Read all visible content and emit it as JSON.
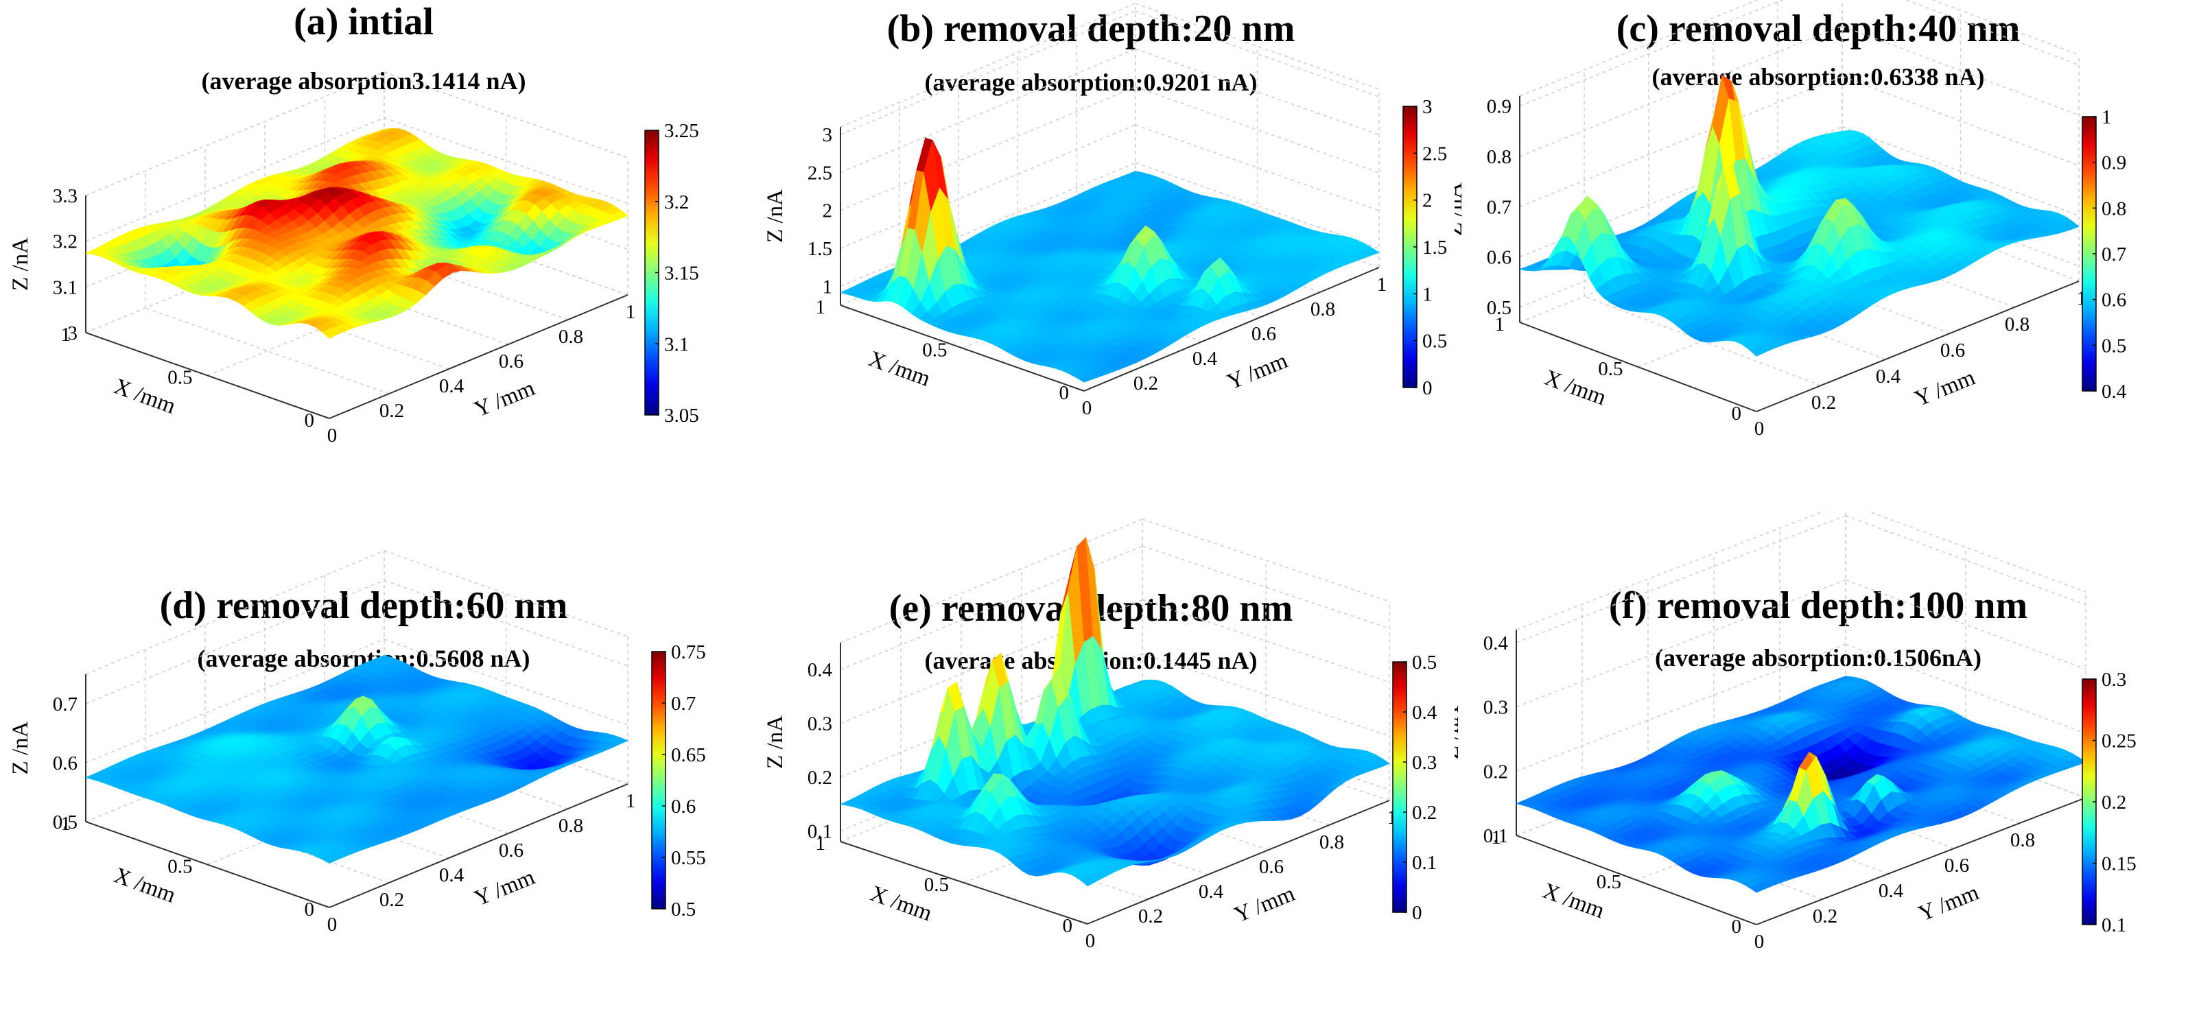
{
  "figure": {
    "colormap": "jet"
  },
  "chart_data": [
    {
      "type": "surface",
      "id": "a",
      "title": "(a) intial",
      "subtitle": "(average absorption3.1414 nA)",
      "xlabel": "X /mm",
      "ylabel": "Y /mm",
      "zlabel": "Z /nA",
      "x_ticks": [
        "0",
        "0.5",
        "1"
      ],
      "y_ticks": [
        "0",
        "0.2",
        "0.4",
        "0.6",
        "0.8",
        "1"
      ],
      "z_ticks": [
        "3",
        "3.1",
        "3.2",
        "3.3"
      ],
      "zlim": [
        3.0,
        3.3
      ],
      "colorbar": {
        "ticks": [
          "3.05",
          "3.1",
          "3.15",
          "3.2",
          "3.25"
        ],
        "range": [
          3.05,
          3.25
        ]
      },
      "surface": {
        "base": 3.175,
        "noise": 0.045,
        "peaks": [
          [
            0.55,
            0.55,
            0.06,
            0.09
          ],
          [
            0.3,
            0.4,
            0.05,
            0.09
          ],
          [
            0.7,
            0.3,
            0.05,
            0.08
          ]
        ],
        "dips": [
          [
            0.8,
            0.2,
            0.08,
            0.08
          ],
          [
            0.4,
            0.8,
            0.07,
            0.09
          ]
        ],
        "seed": 11
      }
    },
    {
      "type": "surface",
      "id": "b",
      "title": "(b) removal depth:20 nm",
      "subtitle": "(average absorption:0.9201 nA)",
      "xlabel": "X /mm",
      "ylabel": "Y /mm",
      "zlabel": "Z /nA",
      "x_ticks": [
        "0",
        "0.5",
        "1"
      ],
      "y_ticks": [
        "0",
        "0.2",
        "0.4",
        "0.6",
        "0.8",
        "1"
      ],
      "z_ticks": [
        "1",
        "1.5",
        "2",
        "2.5",
        "3"
      ],
      "zlim": [
        0.75,
        3.1
      ],
      "colorbar": {
        "ticks": [
          "0",
          "0.5",
          "1",
          "1.5",
          "2",
          "2.5",
          "3"
        ],
        "range": [
          0,
          3
        ]
      },
      "surface": {
        "base": 0.92,
        "noise": 0.12,
        "peaks": [
          [
            0.78,
            0.12,
            2.15,
            0.05
          ],
          [
            0.35,
            0.5,
            0.75,
            0.05
          ],
          [
            0.12,
            0.55,
            0.55,
            0.04
          ]
        ],
        "dips": [],
        "seed": 23
      }
    },
    {
      "type": "surface",
      "id": "c",
      "title": "(c) removal depth:40 nm",
      "subtitle": "(average absorption:0.6338 nA)",
      "xlabel": "X /mm",
      "ylabel": "Y /mm",
      "zlabel": "Z /nA",
      "x_ticks": [
        "0",
        "0.5",
        "1"
      ],
      "y_ticks": [
        "0",
        "0.2",
        "0.4",
        "0.6",
        "0.8",
        "1"
      ],
      "z_ticks": [
        "0.5",
        "0.6",
        "0.7",
        "0.8",
        "0.9"
      ],
      "zlim": [
        0.47,
        0.92
      ],
      "colorbar": {
        "ticks": [
          "0.4",
          "0.5",
          "0.6",
          "0.7",
          "0.8",
          "0.9",
          "1"
        ],
        "range": [
          0.4,
          1.0
        ]
      },
      "surface": {
        "base": 0.58,
        "noise": 0.04,
        "peaks": [
          [
            0.8,
            0.06,
            0.18,
            0.06
          ],
          [
            0.5,
            0.28,
            0.22,
            0.04
          ],
          [
            0.7,
            0.42,
            0.3,
            0.045
          ],
          [
            0.25,
            0.45,
            0.15,
            0.06
          ]
        ],
        "dips": [],
        "seed": 37
      }
    },
    {
      "type": "surface",
      "id": "d",
      "title": "(d) removal depth:60 nm",
      "subtitle": "(average absorption:0.5608 nA)",
      "xlabel": "X /mm",
      "ylabel": "Y /mm",
      "zlabel": "Z /nA",
      "x_ticks": [
        "0",
        "0.5",
        "1"
      ],
      "y_ticks": [
        "0",
        "0.2",
        "0.4",
        "0.6",
        "0.8",
        "1"
      ],
      "z_ticks": [
        "0.5",
        "0.6",
        "0.7"
      ],
      "zlim": [
        0.5,
        0.75
      ],
      "colorbar": {
        "ticks": [
          "0.5",
          "0.55",
          "0.6",
          "0.65",
          "0.7",
          "0.75"
        ],
        "range": [
          0.5,
          0.75
        ]
      },
      "surface": {
        "base": 0.575,
        "noise": 0.012,
        "peaks": [
          [
            0.62,
            0.62,
            0.08,
            0.05
          ],
          [
            0.45,
            0.58,
            0.03,
            0.04
          ]
        ],
        "dips": [
          [
            0.2,
            0.85,
            0.035,
            0.09
          ]
        ],
        "seed": 41
      }
    },
    {
      "type": "surface",
      "id": "e",
      "title": "(e) removal depth:80 nm",
      "subtitle": "(average absorption:0.1445 nA)",
      "xlabel": "X /mm",
      "ylabel": "Y /mm",
      "zlabel": "Z /nA",
      "x_ticks": [
        "0",
        "0.5",
        "1"
      ],
      "y_ticks": [
        "0",
        "0.2",
        "0.4",
        "0.6",
        "0.8",
        "1"
      ],
      "z_ticks": [
        "0.1",
        "0.2",
        "0.3",
        "0.4"
      ],
      "zlim": [
        0.08,
        0.45
      ],
      "colorbar": {
        "ticks": [
          "0",
          "0.1",
          "0.2",
          "0.3",
          "0.4",
          "0.5"
        ],
        "range": [
          0,
          0.5
        ]
      },
      "surface": {
        "base": 0.15,
        "noise": 0.035,
        "peaks": [
          [
            0.85,
            0.25,
            0.2,
            0.04
          ],
          [
            0.85,
            0.4,
            0.22,
            0.04
          ],
          [
            0.8,
            0.55,
            0.18,
            0.04
          ],
          [
            0.95,
            0.72,
            0.28,
            0.03
          ],
          [
            0.95,
            0.78,
            0.3,
            0.03
          ],
          [
            0.55,
            0.15,
            0.1,
            0.05
          ]
        ],
        "dips": [
          [
            0.2,
            0.3,
            0.05,
            0.08
          ]
        ],
        "seed": 53
      }
    },
    {
      "type": "surface",
      "id": "f",
      "title": "(f) removal depth:100 nm",
      "subtitle": "(average absorption:0.1506nA)",
      "xlabel": "X /mm",
      "ylabel": "Y /mm",
      "zlabel": "Z /nA",
      "x_ticks": [
        "0",
        "0.5",
        "1"
      ],
      "y_ticks": [
        "0",
        "0.2",
        "0.4",
        "0.6",
        "0.8",
        "1"
      ],
      "z_ticks": [
        "0.1",
        "0.2",
        "0.3",
        "0.4"
      ],
      "zlim": [
        0.1,
        0.42
      ],
      "colorbar": {
        "ticks": [
          "0.1",
          "0.15",
          "0.2",
          "0.25",
          "0.3"
        ],
        "range": [
          0.1,
          0.3
        ]
      },
      "surface": {
        "base": 0.15,
        "noise": 0.018,
        "peaks": [
          [
            0.25,
            0.35,
            0.12,
            0.04
          ],
          [
            0.25,
            0.55,
            0.06,
            0.04
          ],
          [
            0.6,
            0.3,
            0.04,
            0.06
          ]
        ],
        "dips": [
          [
            0.6,
            0.7,
            0.04,
            0.1
          ]
        ],
        "seed": 67
      }
    }
  ]
}
